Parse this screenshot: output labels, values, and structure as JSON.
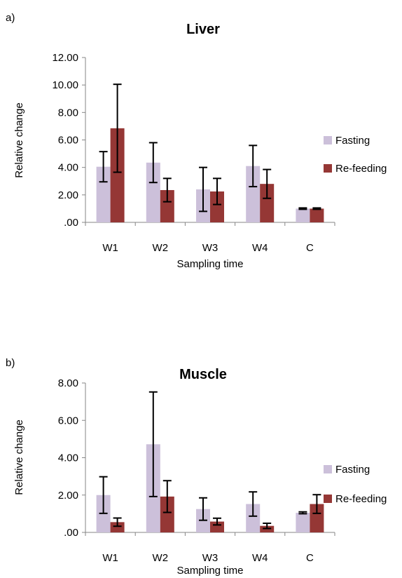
{
  "colors": {
    "fasting": "#ccc0da",
    "refeeding": "#953735",
    "axis": "#868686",
    "error": "#000000"
  },
  "chart_data": [
    {
      "type": "bar",
      "panel_label": "a)",
      "title": "Liver",
      "xlabel": "Sampling time",
      "ylabel": "Relative change",
      "categories": [
        "W1",
        "W2",
        "W3",
        "W4",
        "C"
      ],
      "ylim": [
        0,
        12
      ],
      "yticks": [
        ".00",
        "2.00",
        "4.00",
        "6.00",
        "8.00",
        "10.00",
        "12.00"
      ],
      "grid": false,
      "legend_position": "right",
      "series": [
        {
          "name": "Fasting",
          "values": [
            4.05,
            4.35,
            2.4,
            4.1,
            1.0
          ],
          "errors": [
            1.1,
            1.45,
            1.6,
            1.5,
            0.05
          ]
        },
        {
          "name": "Re-feeding",
          "values": [
            6.85,
            2.35,
            2.25,
            2.8,
            1.0
          ],
          "errors": [
            3.2,
            0.85,
            0.95,
            1.05,
            0.05
          ]
        }
      ]
    },
    {
      "type": "bar",
      "panel_label": "b)",
      "title": "Muscle",
      "xlabel": "Sampling time",
      "ylabel": "Relative change",
      "categories": [
        "W1",
        "W2",
        "W3",
        "W4",
        "C"
      ],
      "ylim": [
        0,
        8
      ],
      "yticks": [
        ".00",
        "2.00",
        "4.00",
        "6.00",
        "8.00"
      ],
      "grid": false,
      "legend_position": "right",
      "series": [
        {
          "name": "Fasting",
          "values": [
            2.0,
            4.72,
            1.25,
            1.52,
            1.05
          ],
          "errors": [
            0.98,
            2.8,
            0.6,
            0.65,
            0.05
          ]
        },
        {
          "name": "Re-feeding",
          "values": [
            0.55,
            1.92,
            0.58,
            0.35,
            1.52
          ],
          "errors": [
            0.22,
            0.85,
            0.18,
            0.14,
            0.5
          ]
        }
      ]
    }
  ]
}
